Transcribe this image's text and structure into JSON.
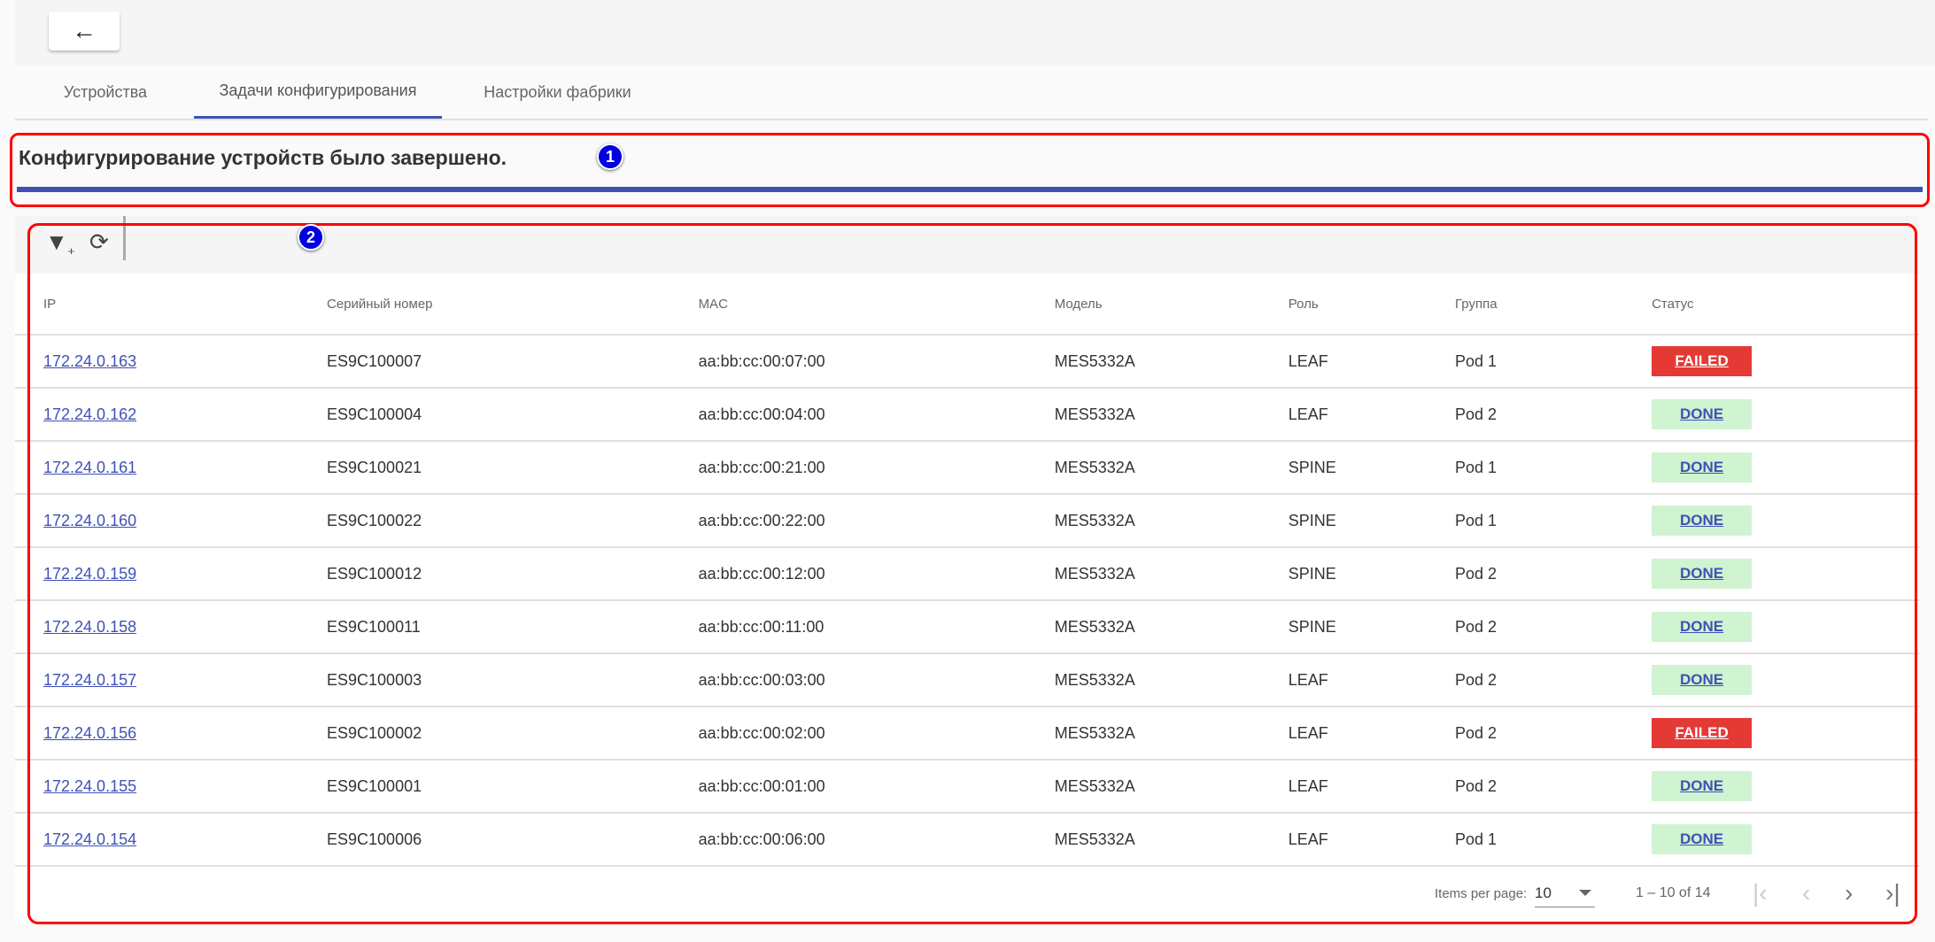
{
  "header": {
    "back_icon": "arrow-left-icon",
    "back_label": "←"
  },
  "tabs": [
    {
      "label": "Устройства"
    },
    {
      "label": "Задачи конфигурирования",
      "active": true
    },
    {
      "label": "Настройки фабрики"
    }
  ],
  "status": {
    "message": "Конфигурирование устройств было завершено.",
    "progress_percent": 100
  },
  "annotations": [
    "1",
    "2"
  ],
  "toolbar": {
    "filter_icon": "filter-add-icon",
    "refresh_icon": "refresh-icon"
  },
  "table": {
    "columns": [
      "IP",
      "Серийный номер",
      "MAC",
      "Модель",
      "Роль",
      "Группа",
      "Статус"
    ],
    "rows": [
      [
        "172.24.0.163",
        "ES9C100007",
        "aa:bb:cc:00:07:00",
        "MES5332A",
        "LEAF",
        "Pod 1",
        "FAILED"
      ],
      [
        "172.24.0.162",
        "ES9C100004",
        "aa:bb:cc:00:04:00",
        "MES5332A",
        "LEAF",
        "Pod 2",
        "DONE"
      ],
      [
        "172.24.0.161",
        "ES9C100021",
        "aa:bb:cc:00:21:00",
        "MES5332A",
        "SPINE",
        "Pod 1",
        "DONE"
      ],
      [
        "172.24.0.160",
        "ES9C100022",
        "aa:bb:cc:00:22:00",
        "MES5332A",
        "SPINE",
        "Pod 1",
        "DONE"
      ],
      [
        "172.24.0.159",
        "ES9C100012",
        "aa:bb:cc:00:12:00",
        "MES5332A",
        "SPINE",
        "Pod 2",
        "DONE"
      ],
      [
        "172.24.0.158",
        "ES9C100011",
        "aa:bb:cc:00:11:00",
        "MES5332A",
        "SPINE",
        "Pod 2",
        "DONE"
      ],
      [
        "172.24.0.157",
        "ES9C100003",
        "aa:bb:cc:00:03:00",
        "MES5332A",
        "LEAF",
        "Pod 2",
        "DONE"
      ],
      [
        "172.24.0.156",
        "ES9C100002",
        "aa:bb:cc:00:02:00",
        "MES5332A",
        "LEAF",
        "Pod 2",
        "FAILED"
      ],
      [
        "172.24.0.155",
        "ES9C100001",
        "aa:bb:cc:00:01:00",
        "MES5332A",
        "LEAF",
        "Pod 2",
        "DONE"
      ],
      [
        "172.24.0.154",
        "ES9C100006",
        "aa:bb:cc:00:06:00",
        "MES5332A",
        "LEAF",
        "Pod 1",
        "DONE"
      ]
    ]
  },
  "status_colors": {
    "FAILED": "#e53935",
    "DONE": "#d0f3d1"
  },
  "paginator": {
    "items_per_page_label": "Items per page:",
    "page_size": "10",
    "range_label": "1 – 10 of 14"
  }
}
